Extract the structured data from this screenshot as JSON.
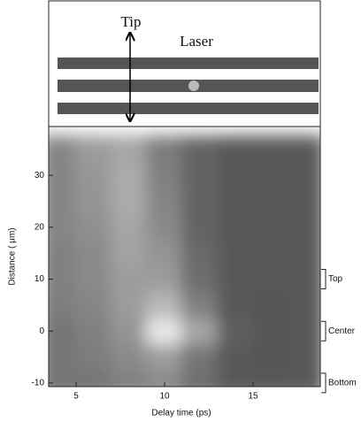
{
  "chart_data": {
    "type": "heatmap",
    "xlabel": "Delay time (ps)",
    "ylabel": "Distance ( μm)",
    "xlim": [
      3.45,
      18.8
    ],
    "ylim": [
      -10.7,
      39.4
    ],
    "xticks": [
      5,
      10,
      15
    ],
    "yticks": [
      -10,
      0,
      10,
      20,
      30
    ],
    "x": [
      4,
      6,
      8,
      10,
      12,
      14,
      16,
      18
    ],
    "y": [
      -10,
      -5,
      0,
      5,
      10,
      15,
      20,
      25,
      30,
      35
    ],
    "z": [
      [
        0.35,
        0.35,
        0.4,
        0.45,
        0.3,
        0.2,
        0.2,
        0.2
      ],
      [
        0.35,
        0.38,
        0.45,
        0.55,
        0.35,
        0.2,
        0.18,
        0.2
      ],
      [
        0.35,
        0.4,
        0.5,
        0.95,
        0.6,
        0.22,
        0.18,
        0.2
      ],
      [
        0.38,
        0.42,
        0.55,
        0.7,
        0.4,
        0.2,
        0.18,
        0.2
      ],
      [
        0.4,
        0.45,
        0.55,
        0.55,
        0.3,
        0.2,
        0.2,
        0.2
      ],
      [
        0.4,
        0.45,
        0.58,
        0.5,
        0.28,
        0.2,
        0.2,
        0.2
      ],
      [
        0.42,
        0.48,
        0.6,
        0.45,
        0.25,
        0.2,
        0.2,
        0.2
      ],
      [
        0.42,
        0.5,
        0.62,
        0.42,
        0.25,
        0.2,
        0.2,
        0.2
      ],
      [
        0.42,
        0.52,
        0.62,
        0.4,
        0.25,
        0.2,
        0.2,
        0.2
      ],
      [
        0.42,
        0.55,
        0.6,
        0.38,
        0.25,
        0.2,
        0.2,
        0.2
      ]
    ],
    "annotations": [
      {
        "text": "Top",
        "y": 10
      },
      {
        "text": "Center",
        "y": 0
      },
      {
        "text": "Bottom",
        "y": -10
      }
    ],
    "inset": {
      "tip": "Tip",
      "laser": "Laser"
    }
  }
}
